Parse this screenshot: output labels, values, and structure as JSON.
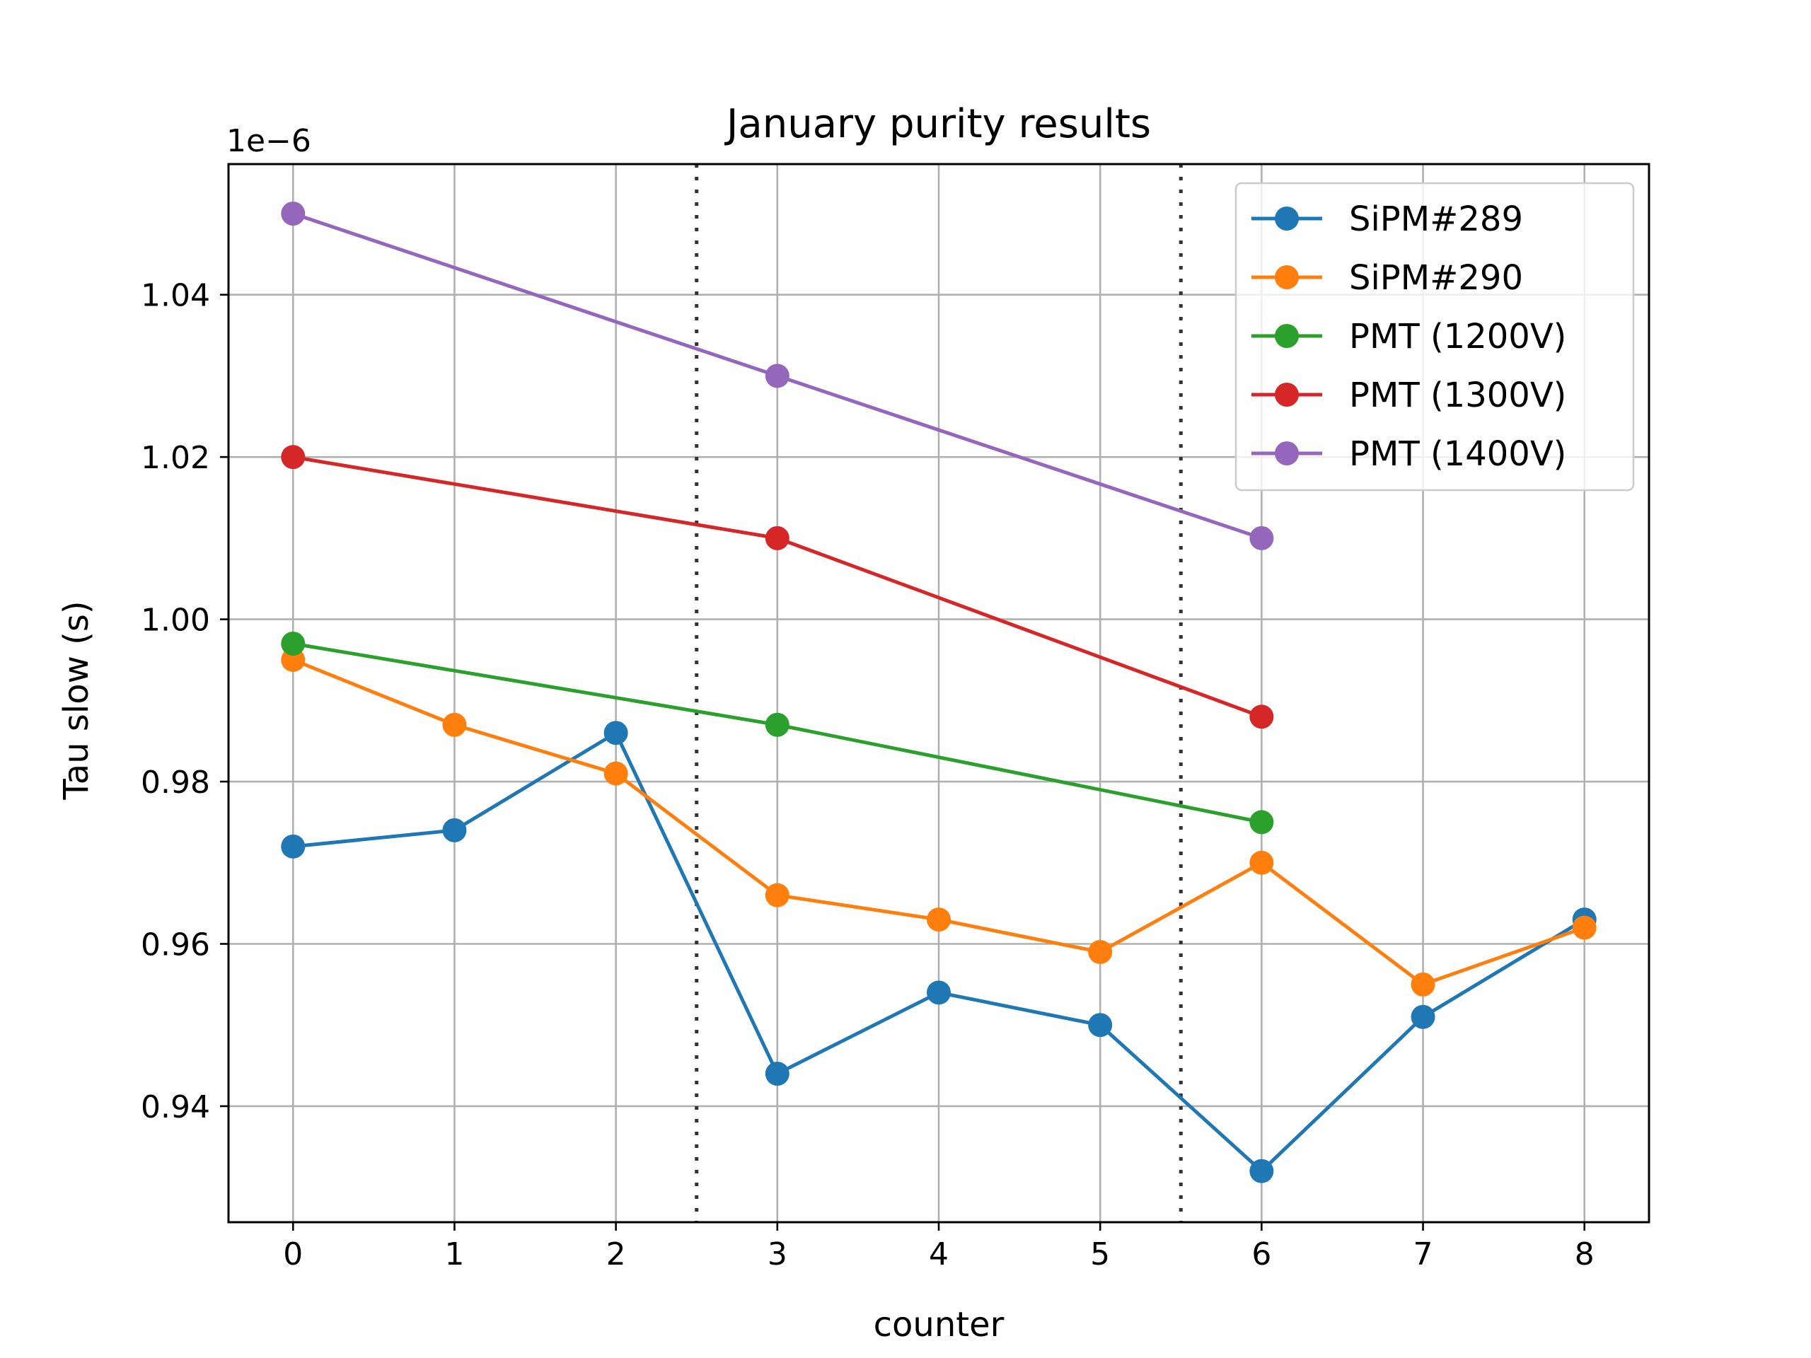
{
  "chart_data": {
    "type": "line",
    "title": "January purity results",
    "xlabel": "counter",
    "ylabel": "Tau slow (s)",
    "y_offset_text": "1e−6",
    "xlim": [
      -0.4,
      8.4
    ],
    "ylim": [
      0.9257,
      1.0561
    ],
    "x_ticks": [
      0,
      1,
      2,
      3,
      4,
      5,
      6,
      7,
      8
    ],
    "y_ticks": [
      0.94,
      0.96,
      0.98,
      1.0,
      1.02,
      1.04
    ],
    "y_tick_labels": [
      "0.94",
      "0.96",
      "0.98",
      "1.00",
      "1.02",
      "1.04"
    ],
    "grid": true,
    "vertical_lines": [
      2.5,
      5.5
    ],
    "legend_position": "upper right",
    "series": [
      {
        "name": "SiPM#289",
        "color": "#1f77b4",
        "x": [
          0,
          1,
          2,
          3,
          4,
          5,
          6,
          7,
          8
        ],
        "y": [
          0.972,
          0.974,
          0.986,
          0.944,
          0.954,
          0.95,
          0.932,
          0.951,
          0.963
        ]
      },
      {
        "name": "SiPM#290",
        "color": "#ff7f0e",
        "x": [
          0,
          1,
          2,
          3,
          4,
          5,
          6,
          7,
          8
        ],
        "y": [
          0.995,
          0.987,
          0.981,
          0.966,
          0.963,
          0.959,
          0.97,
          0.955,
          0.962
        ]
      },
      {
        "name": "PMT (1200V)",
        "color": "#2ca02c",
        "x": [
          0,
          3,
          6
        ],
        "y": [
          0.997,
          0.987,
          0.975
        ]
      },
      {
        "name": "PMT (1300V)",
        "color": "#d62728",
        "x": [
          0,
          3,
          6
        ],
        "y": [
          1.02,
          1.01,
          0.988
        ]
      },
      {
        "name": "PMT (1400V)",
        "color": "#9467bd",
        "x": [
          0,
          3,
          6
        ],
        "y": [
          1.05,
          1.03,
          1.01
        ]
      }
    ]
  }
}
